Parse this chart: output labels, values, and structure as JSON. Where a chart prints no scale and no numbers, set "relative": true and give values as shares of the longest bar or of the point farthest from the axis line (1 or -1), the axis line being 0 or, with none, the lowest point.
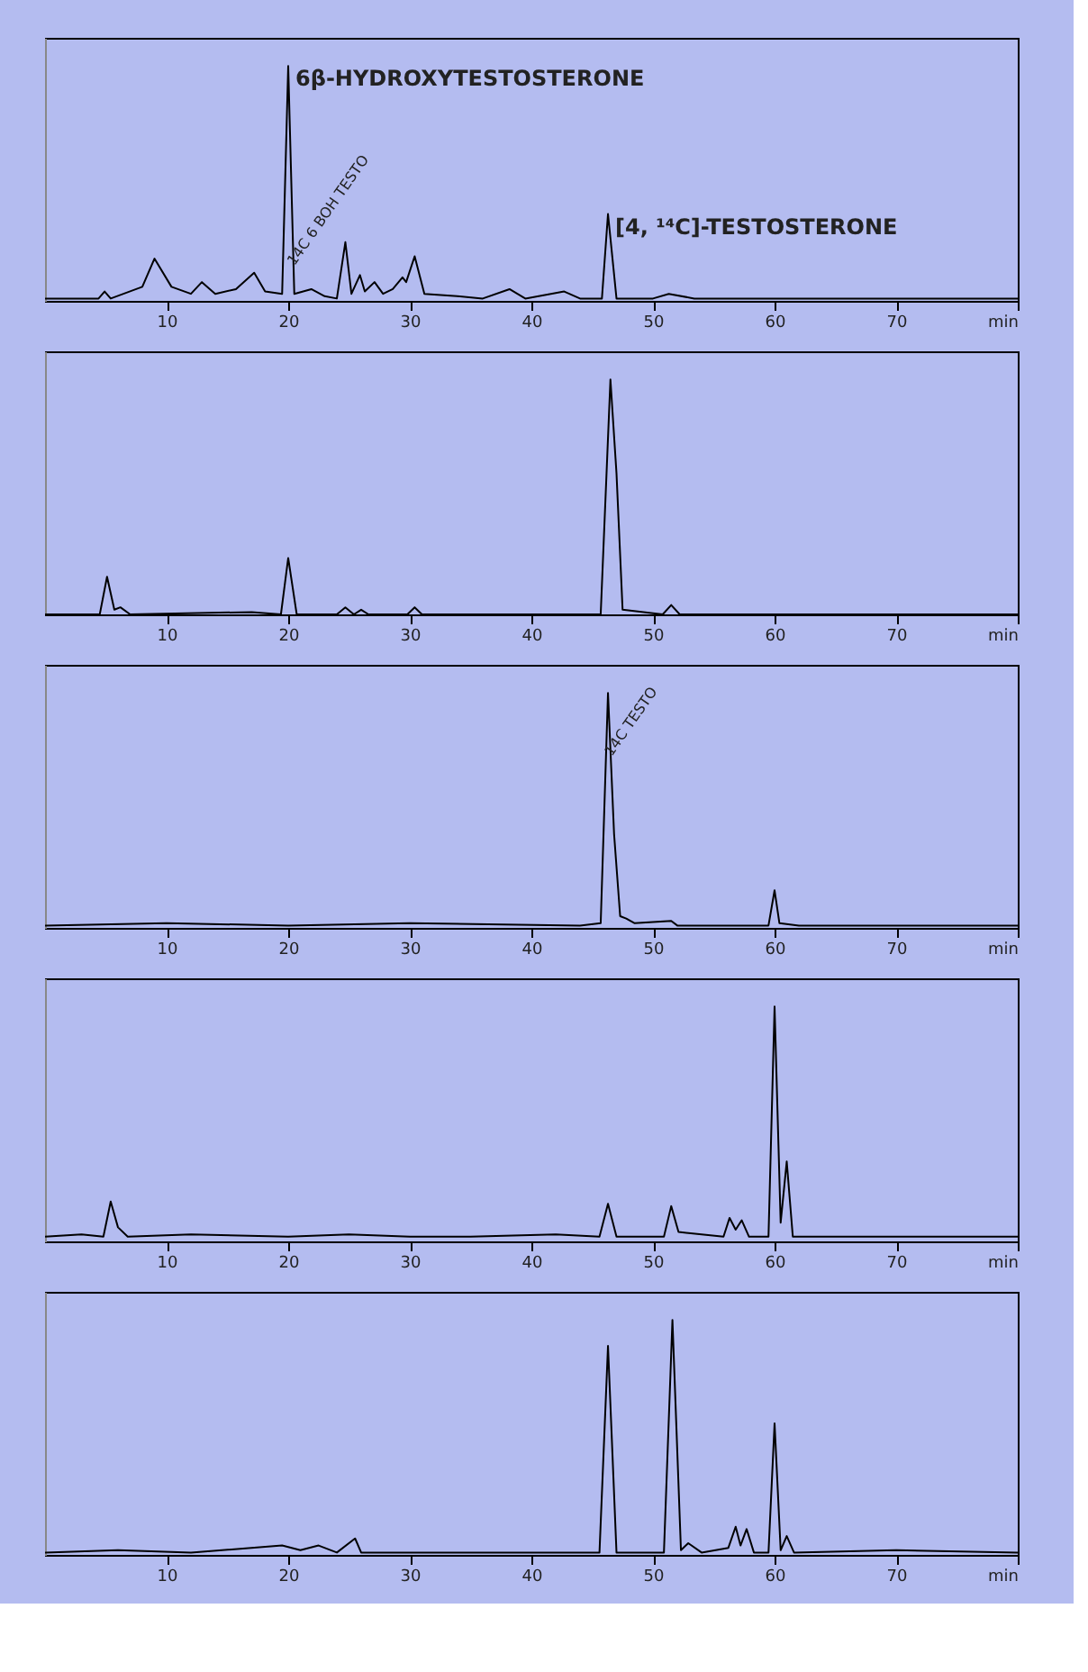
{
  "chart_data": [
    {
      "type": "line",
      "relative": true,
      "xlim": [
        0,
        80
      ],
      "xticks": [
        10,
        20,
        30,
        40,
        50,
        60,
        70,
        {
          "value": 80,
          "label": "min"
        }
      ],
      "x": [
        0,
        4.4,
        4.9,
        5.4,
        8.0,
        9.0,
        10.4,
        12.0,
        12.9,
        14.0,
        15.7,
        17.2,
        18.1,
        19.5,
        20.0,
        20.5,
        21.9,
        23.0,
        24.0,
        24.7,
        25.2,
        25.9,
        26.3,
        27.1,
        27.8,
        28.6,
        29.4,
        29.7,
        30.4,
        31.2,
        33.9,
        36.0,
        38.2,
        39.5,
        42.7,
        44.0,
        45.8,
        46.3,
        47.0,
        50.0,
        51.3,
        53.4,
        80
      ],
      "series": [
        {
          "color": "#000000",
          "values": [
            0.01,
            0.01,
            0.04,
            0.01,
            0.06,
            0.18,
            0.06,
            0.03,
            0.08,
            0.03,
            0.05,
            0.12,
            0.04,
            0.03,
            1.0,
            0.03,
            0.05,
            0.02,
            0.01,
            0.25,
            0.03,
            0.11,
            0.04,
            0.08,
            0.03,
            0.05,
            0.1,
            0.08,
            0.19,
            0.03,
            0.02,
            0.01,
            0.05,
            0.01,
            0.04,
            0.01,
            0.01,
            0.37,
            0.01,
            0.01,
            0.03,
            0.01,
            0.01
          ]
        }
      ],
      "annotations": [
        {
          "text": "6β-HYDROXYTESTOSTERONE",
          "x": 20.0,
          "y": 1.0
        },
        {
          "text": "[4, ¹⁴C]-TESTOSTERONE",
          "x": 46.3,
          "y": 0.37
        },
        {
          "text": "14C 6 BOH TESTO",
          "x": 20.5,
          "y": 0.12
        }
      ]
    },
    {
      "type": "line",
      "relative": true,
      "xlim": [
        0,
        80
      ],
      "xticks": [
        10,
        20,
        30,
        40,
        50,
        60,
        70,
        {
          "value": 80,
          "label": "min"
        }
      ],
      "x": [
        0,
        4.5,
        5.1,
        5.7,
        6.2,
        7.0,
        17.0,
        19.4,
        20.0,
        20.7,
        24.0,
        24.7,
        25.4,
        26.0,
        26.6,
        29.8,
        30.4,
        31.0,
        45.7,
        46.5,
        47.0,
        47.5,
        50.8,
        51.5,
        52.2,
        80
      ],
      "series": [
        {
          "color": "#000000",
          "values": [
            0.0,
            0.0,
            0.16,
            0.02,
            0.03,
            0.0,
            0.01,
            0.0,
            0.24,
            0.0,
            0.0,
            0.03,
            0.0,
            0.02,
            0.0,
            0.0,
            0.03,
            0.0,
            0.0,
            1.0,
            0.6,
            0.02,
            0.0,
            0.04,
            0.0,
            0.0
          ]
        }
      ]
    },
    {
      "type": "line",
      "relative": true,
      "xlim": [
        0,
        80
      ],
      "xticks": [
        10,
        20,
        30,
        40,
        50,
        60,
        70,
        {
          "value": 80,
          "label": "min"
        }
      ],
      "x": [
        0,
        10,
        20,
        30,
        44.0,
        45.7,
        46.3,
        46.8,
        47.3,
        47.8,
        48.5,
        51.5,
        52.0,
        59.5,
        60.0,
        60.4,
        62.0,
        80
      ],
      "series": [
        {
          "color": "#000000",
          "values": [
            0.01,
            0.02,
            0.01,
            0.02,
            0.01,
            0.02,
            1.0,
            0.4,
            0.05,
            0.04,
            0.02,
            0.03,
            0.01,
            0.01,
            0.16,
            0.02,
            0.01,
            0.01
          ]
        }
      ],
      "annotations": [
        {
          "text": "14C TESTO",
          "x": 46.6,
          "y": 0.7
        }
      ]
    },
    {
      "type": "line",
      "relative": true,
      "xlim": [
        0,
        80
      ],
      "xticks": [
        10,
        20,
        30,
        40,
        50,
        60,
        70,
        {
          "value": 80,
          "label": "min"
        }
      ],
      "x": [
        0,
        3.0,
        4.8,
        5.4,
        6.0,
        6.8,
        12.0,
        20.0,
        25.0,
        30.0,
        35.0,
        42.0,
        45.6,
        46.3,
        47.0,
        50.9,
        51.5,
        52.1,
        55.8,
        56.3,
        56.8,
        57.3,
        57.9,
        59.5,
        60.0,
        60.5,
        61.0,
        61.5,
        65.0,
        80
      ],
      "series": [
        {
          "color": "#000000",
          "values": [
            0.02,
            0.03,
            0.02,
            0.17,
            0.06,
            0.02,
            0.03,
            0.02,
            0.03,
            0.02,
            0.02,
            0.03,
            0.02,
            0.16,
            0.02,
            0.02,
            0.15,
            0.04,
            0.02,
            0.1,
            0.05,
            0.09,
            0.02,
            0.02,
            1.0,
            0.08,
            0.34,
            0.02,
            0.02,
            0.02
          ]
        }
      ]
    },
    {
      "type": "line",
      "relative": true,
      "xlim": [
        0,
        80
      ],
      "xticks": [
        10,
        20,
        30,
        40,
        50,
        60,
        70,
        {
          "value": 80,
          "label": "min"
        }
      ],
      "x": [
        0,
        6.0,
        12.0,
        19.5,
        21.0,
        22.5,
        24.0,
        25.5,
        26.0,
        35.0,
        45.6,
        46.3,
        47.0,
        50.9,
        51.6,
        52.3,
        52.9,
        54.0,
        56.2,
        56.8,
        57.2,
        57.7,
        58.3,
        59.5,
        60.0,
        60.5,
        61.0,
        61.6,
        70.0,
        80
      ],
      "series": [
        {
          "color": "#000000",
          "values": [
            0.01,
            0.02,
            0.01,
            0.04,
            0.02,
            0.04,
            0.01,
            0.07,
            0.01,
            0.01,
            0.01,
            0.89,
            0.01,
            0.01,
            1.0,
            0.02,
            0.05,
            0.01,
            0.03,
            0.12,
            0.04,
            0.11,
            0.01,
            0.01,
            0.56,
            0.02,
            0.08,
            0.01,
            0.02,
            0.01
          ]
        }
      ]
    }
  ]
}
